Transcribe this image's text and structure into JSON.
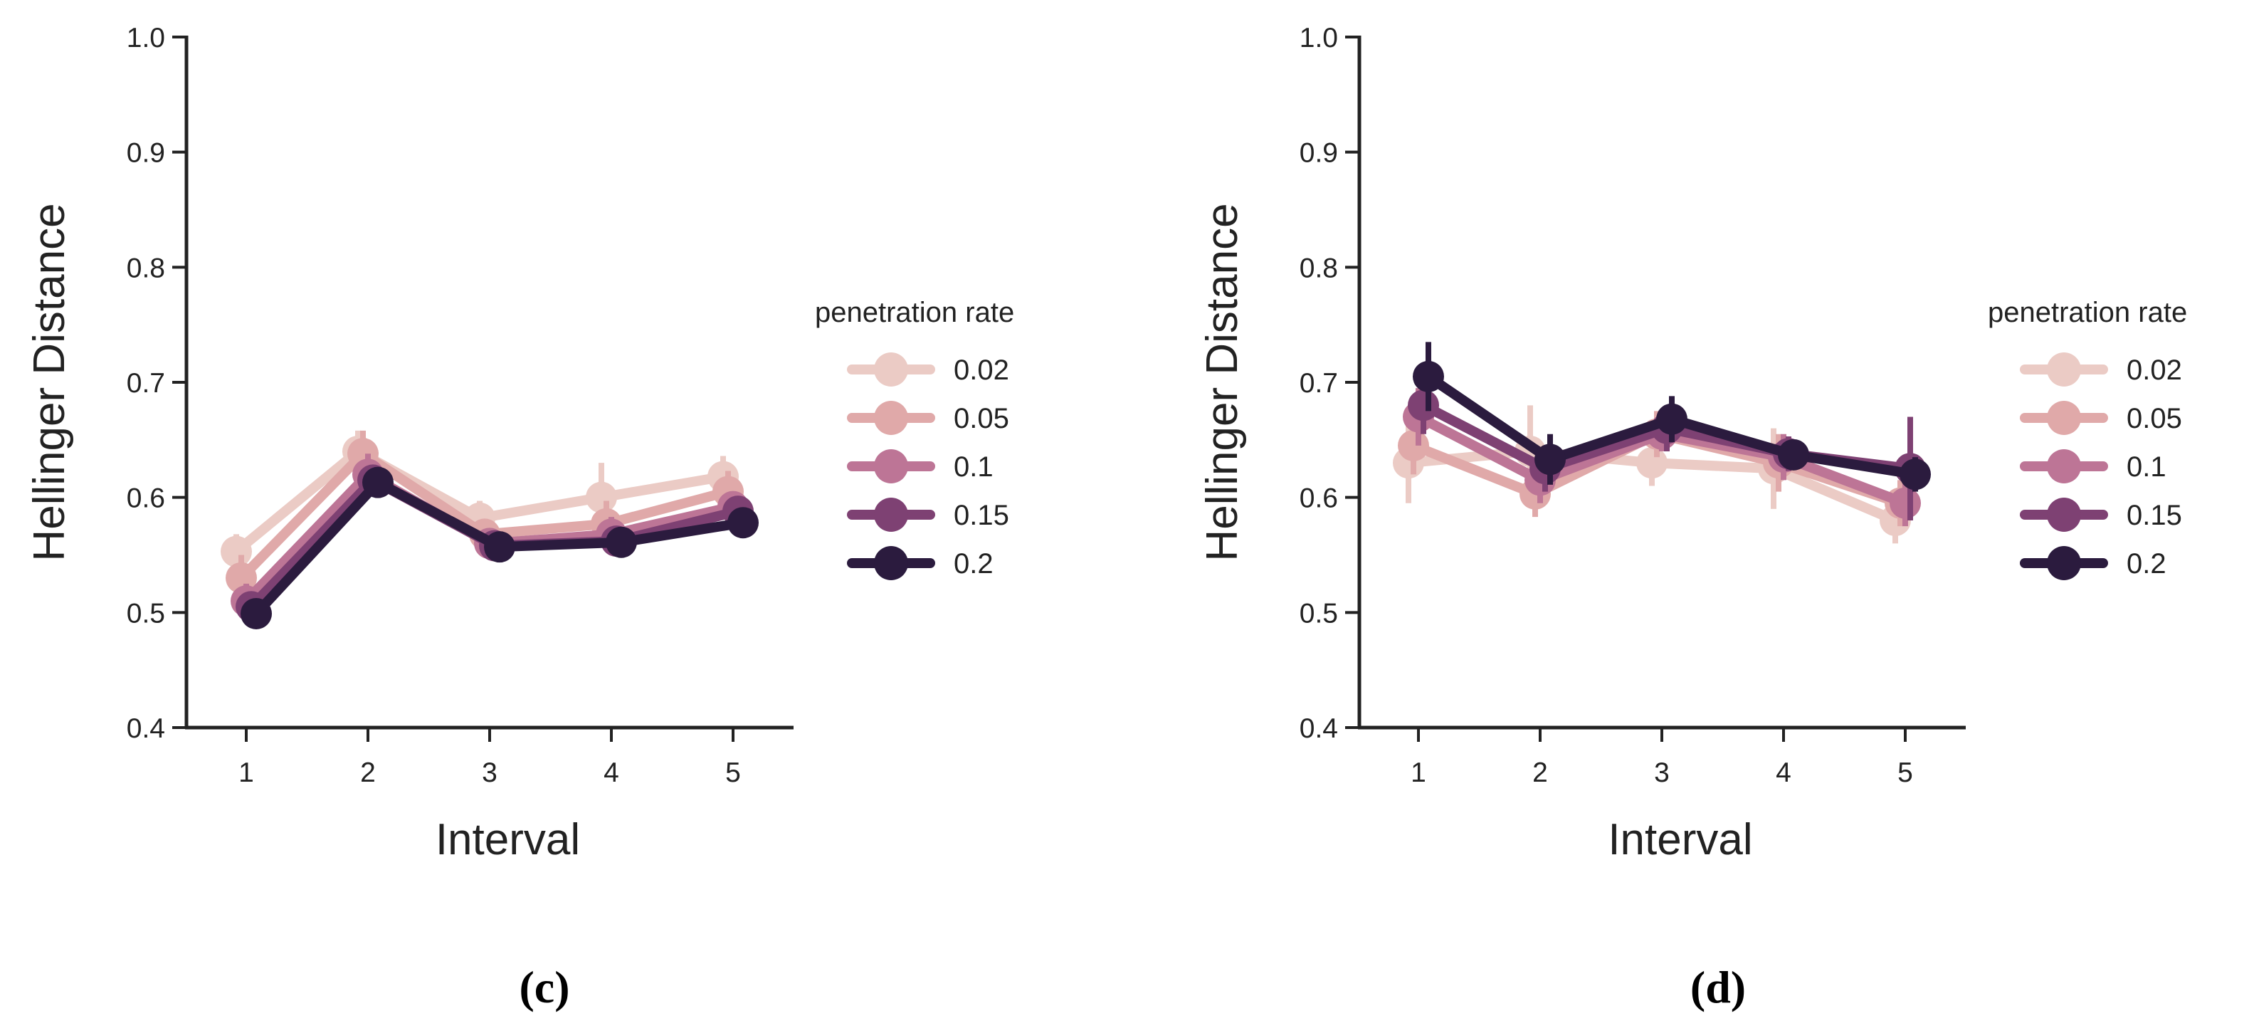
{
  "chart_data": [
    {
      "type": "line",
      "panel": "c",
      "caption": "(c)",
      "xlabel": "Interval",
      "ylabel": "Hellinger Distance",
      "ylim": [
        0.4,
        1.0
      ],
      "yticks": [
        "0.4",
        "0.5",
        "0.6",
        "0.7",
        "0.8",
        "0.9",
        "1.0"
      ],
      "categories": [
        "1",
        "2",
        "3",
        "4",
        "5"
      ],
      "legend": {
        "title": "penetration rate",
        "placement": "right"
      },
      "series": [
        {
          "name": "0.02",
          "color": "#ebcbc5",
          "values": [
            0.553,
            0.64,
            0.582,
            0.6,
            0.618
          ],
          "err": [
            0.015,
            0.018,
            0.015,
            0.03,
            0.018
          ]
        },
        {
          "name": "0.05",
          "color": "#e0a9a9",
          "values": [
            0.53,
            0.638,
            0.568,
            0.577,
            0.605
          ],
          "err": [
            0.02,
            0.02,
            0.012,
            0.02,
            0.018
          ]
        },
        {
          "name": "0.1",
          "color": "#bd7596",
          "values": [
            0.51,
            0.62,
            0.56,
            0.568,
            0.592
          ],
          "err": [
            0.015,
            0.018,
            0.01,
            0.015,
            0.012
          ]
        },
        {
          "name": "0.15",
          "color": "#7e4173",
          "values": [
            0.505,
            0.615,
            0.558,
            0.562,
            0.588
          ],
          "err": [
            0.01,
            0.012,
            0.01,
            0.01,
            0.012
          ]
        },
        {
          "name": "0.2",
          "color": "#2b1b3e",
          "values": [
            0.499,
            0.613,
            0.557,
            0.561,
            0.578
          ],
          "err": [
            0.01,
            0.01,
            0.008,
            0.01,
            0.01
          ]
        }
      ]
    },
    {
      "type": "line",
      "panel": "d",
      "caption": "(d)",
      "xlabel": "Interval",
      "ylabel": "Hellinger Distance",
      "ylim": [
        0.4,
        1.0
      ],
      "yticks": [
        "0.4",
        "0.5",
        "0.6",
        "0.7",
        "0.8",
        "0.9",
        "1.0"
      ],
      "categories": [
        "1",
        "2",
        "3",
        "4",
        "5"
      ],
      "legend": {
        "title": "penetration rate",
        "placement": "right"
      },
      "series": [
        {
          "name": "0.02",
          "color": "#ebcbc5",
          "values": [
            0.63,
            0.64,
            0.63,
            0.625,
            0.58
          ],
          "err": [
            0.035,
            0.04,
            0.02,
            0.035,
            0.02
          ]
        },
        {
          "name": "0.05",
          "color": "#e0a9a9",
          "values": [
            0.645,
            0.603,
            0.655,
            0.63,
            0.595
          ],
          "err": [
            0.025,
            0.02,
            0.02,
            0.025,
            0.02
          ]
        },
        {
          "name": "0.1",
          "color": "#bd7596",
          "values": [
            0.67,
            0.615,
            0.655,
            0.635,
            0.595
          ],
          "err": [
            0.025,
            0.02,
            0.015,
            0.02,
            0.02
          ]
        },
        {
          "name": "0.15",
          "color": "#7e4173",
          "values": [
            0.68,
            0.625,
            0.66,
            0.638,
            0.625
          ],
          "err": [
            0.025,
            0.02,
            0.02,
            0.015,
            0.045
          ]
        },
        {
          "name": "0.2",
          "color": "#2b1b3e",
          "values": [
            0.705,
            0.633,
            0.668,
            0.637,
            0.62
          ],
          "err": [
            0.03,
            0.022,
            0.02,
            0.012,
            0.015
          ]
        }
      ]
    }
  ]
}
